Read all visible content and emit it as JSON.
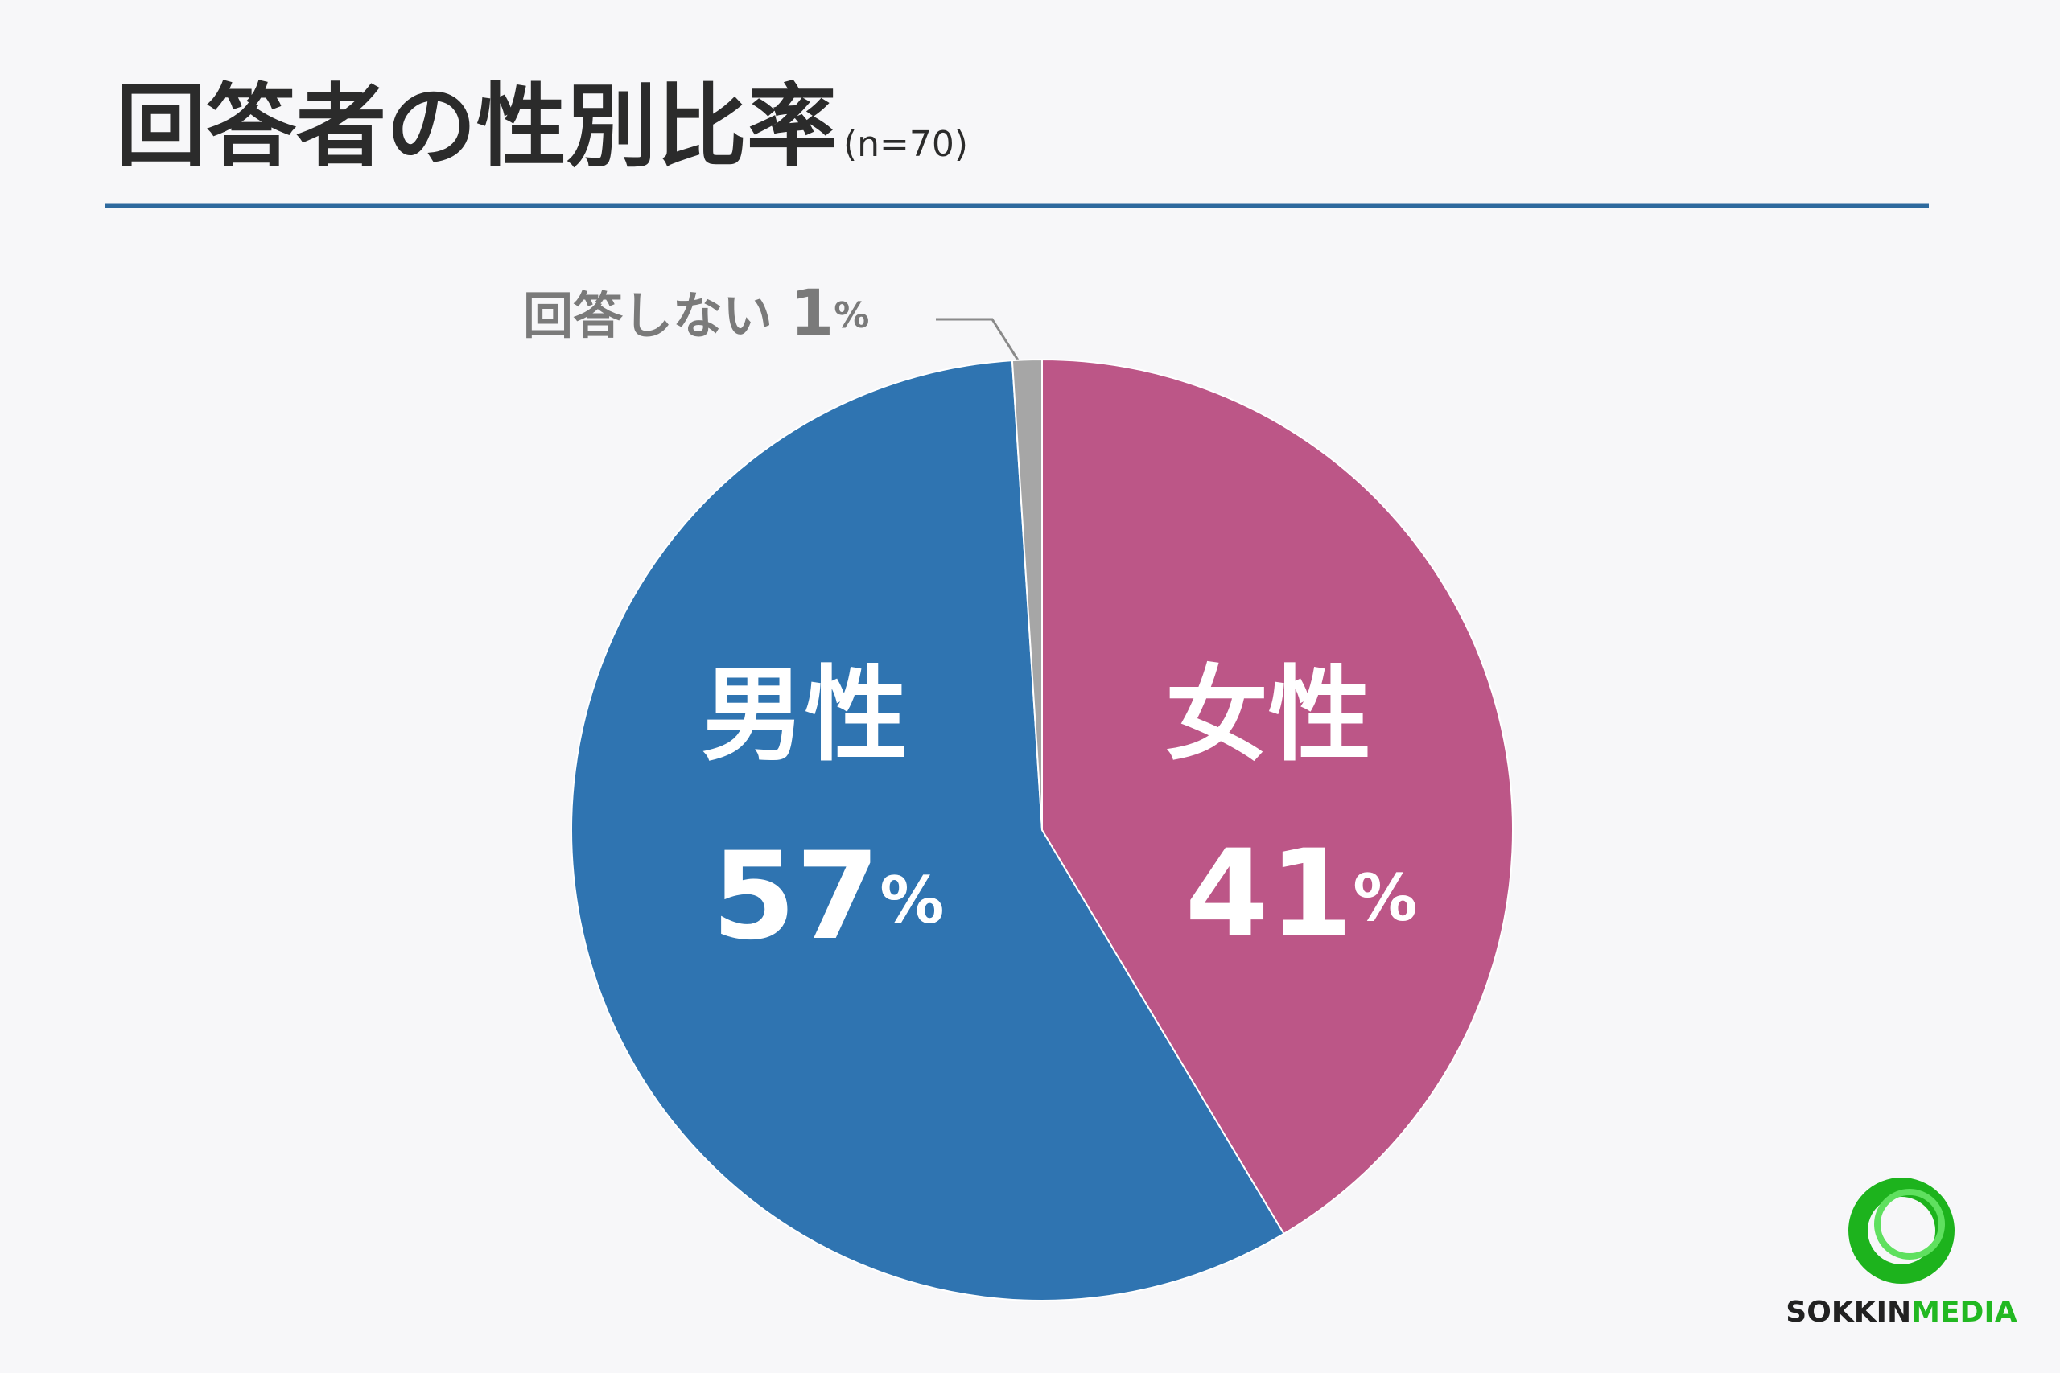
{
  "chart_data": {
    "type": "pie",
    "title": "回答者の性別比率",
    "subtitle": "(n=70)",
    "categories": [
      "女性",
      "男性",
      "回答しない"
    ],
    "values": [
      41,
      57,
      1
    ],
    "value_labels": [
      "41%",
      "57%",
      "1%"
    ],
    "colors": [
      "#bc5687",
      "#2f74b1",
      "#a6a6a6"
    ]
  },
  "logo": {
    "brand": "SOKKIN",
    "suffix": "MEDIA"
  }
}
